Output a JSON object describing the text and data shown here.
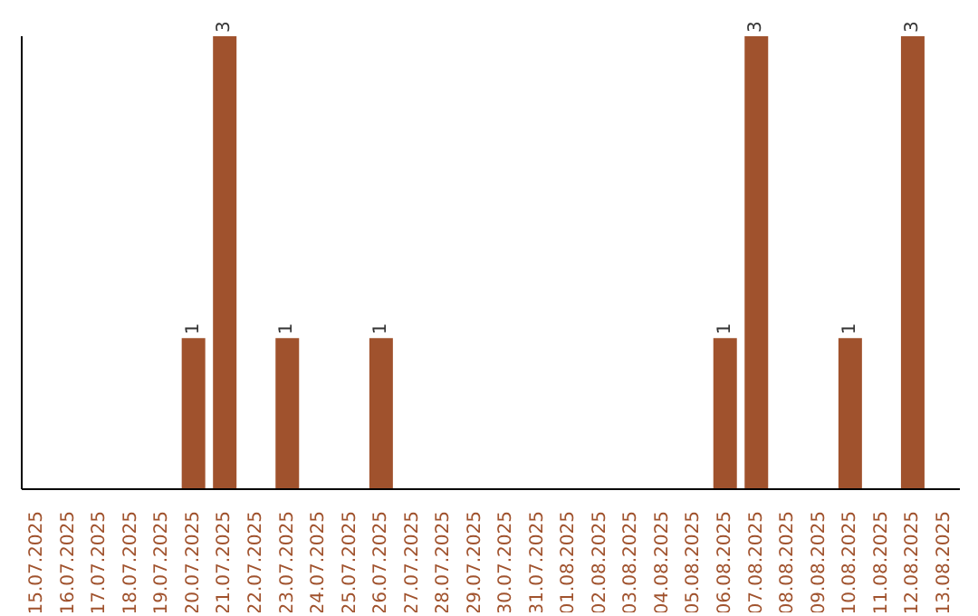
{
  "chart_data": {
    "type": "bar",
    "color": "#a0522d",
    "categories": [
      "15.07.2025",
      "16.07.2025",
      "17.07.2025",
      "18.07.2025",
      "19.07.2025",
      "20.07.2025",
      "21.07.2025",
      "22.07.2025",
      "23.07.2025",
      "24.07.2025",
      "25.07.2025",
      "26.07.2025",
      "27.07.2025",
      "28.07.2025",
      "29.07.2025",
      "30.07.2025",
      "31.07.2025",
      "01.08.2025",
      "02.08.2025",
      "03.08.2025",
      "04.08.2025",
      "05.08.2025",
      "06.08.2025",
      "07.08.2025",
      "08.08.2025",
      "09.08.2025",
      "10.08.2025",
      "11.08.2025",
      "12.08.2025",
      "13.08.2025"
    ],
    "values": [
      0,
      0,
      0,
      0,
      0,
      1,
      3,
      0,
      1,
      0,
      0,
      1,
      0,
      0,
      0,
      0,
      0,
      0,
      0,
      0,
      0,
      0,
      1,
      3,
      0,
      0,
      1,
      0,
      3,
      0
    ],
    "value_labels": [
      null,
      null,
      null,
      null,
      null,
      "1",
      "3",
      null,
      "1",
      null,
      null,
      "1",
      null,
      null,
      null,
      null,
      null,
      null,
      null,
      null,
      null,
      null,
      "1",
      "3",
      null,
      null,
      "1",
      null,
      "3",
      null
    ]
  }
}
